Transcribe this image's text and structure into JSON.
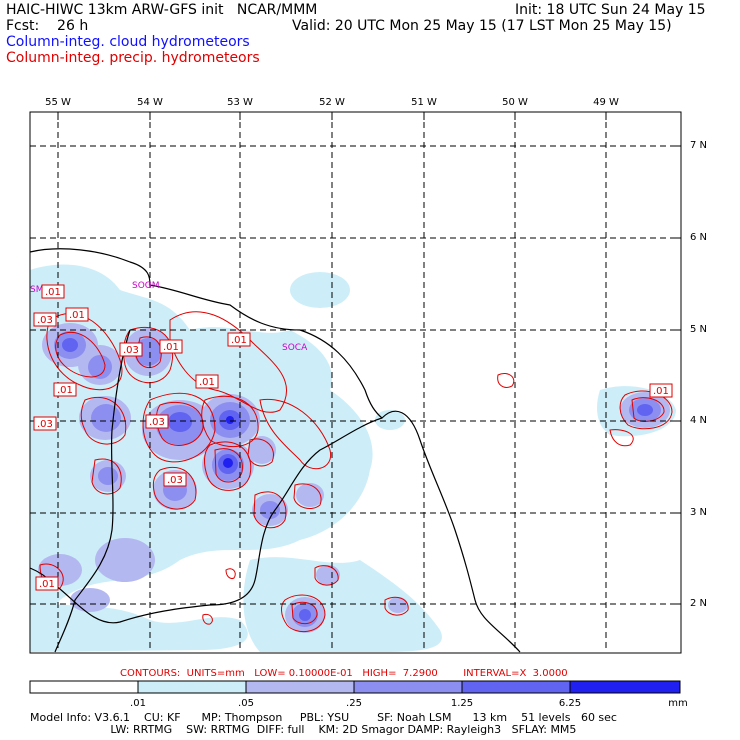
{
  "header": {
    "line1_left": "HAIC-HIWC 13km ARW-GFS init   NCAR/MMM",
    "line1_right": "Init: 18 UTC Sun 24 May 15",
    "line2_left": "Fcst:    26 h",
    "line2_right": "Valid: 20 UTC Mon 25 May 15 (17 LST Mon 25 May 15)",
    "legend_cloud": "Column-integ. cloud hydrometeors",
    "legend_precip": "Column-integ. precip. hydrometeors"
  },
  "colors": {
    "cloud_text": "#1010ff",
    "precip_text": "#e00000",
    "contour": "#e00000",
    "coast": "#000000",
    "fill_01": "#cdeef8",
    "fill_05": "#b4b8f0",
    "fill_25": "#8c8ff0",
    "fill_125": "#6064f0",
    "fill_625": "#2020f0"
  },
  "longitudes": [
    "55 W",
    "54 W",
    "53 W",
    "52 W",
    "51 W",
    "50 W",
    "49 W"
  ],
  "latitudes": [
    "7 N",
    "6 N",
    "5 N",
    "4 N",
    "3 N",
    "2 N"
  ],
  "station_labels": [
    "SMJP",
    "SOGM",
    "SOCA"
  ],
  "contour_value_labels": [
    ".01",
    ".03",
    ".01",
    ".03",
    ".01",
    ".01",
    ".01",
    ".03",
    ".01",
    ".03",
    ".03",
    ".01",
    ".01"
  ],
  "contours_info": "CONTOURS:  UNITS=mm   LOW= 0.10000E-01   HIGH=  7.2900        INTERVAL=X  3.0000",
  "colorbar": {
    "ticks": [
      ".01",
      ".05",
      ".25",
      "1.25",
      "6.25"
    ],
    "unit": "mm"
  },
  "model_info": {
    "line1": "Model Info: V3.6.1    CU: KF      MP: Thompson     PBL: YSU        SF: Noah LSM      13 km    51 levels   60 sec",
    "line2": "                       LW: RRTMG    SW: RRTMG  DIFF: full    KM: 2D Smagor DAMP: Rayleigh3   SFLAY: MM5"
  }
}
